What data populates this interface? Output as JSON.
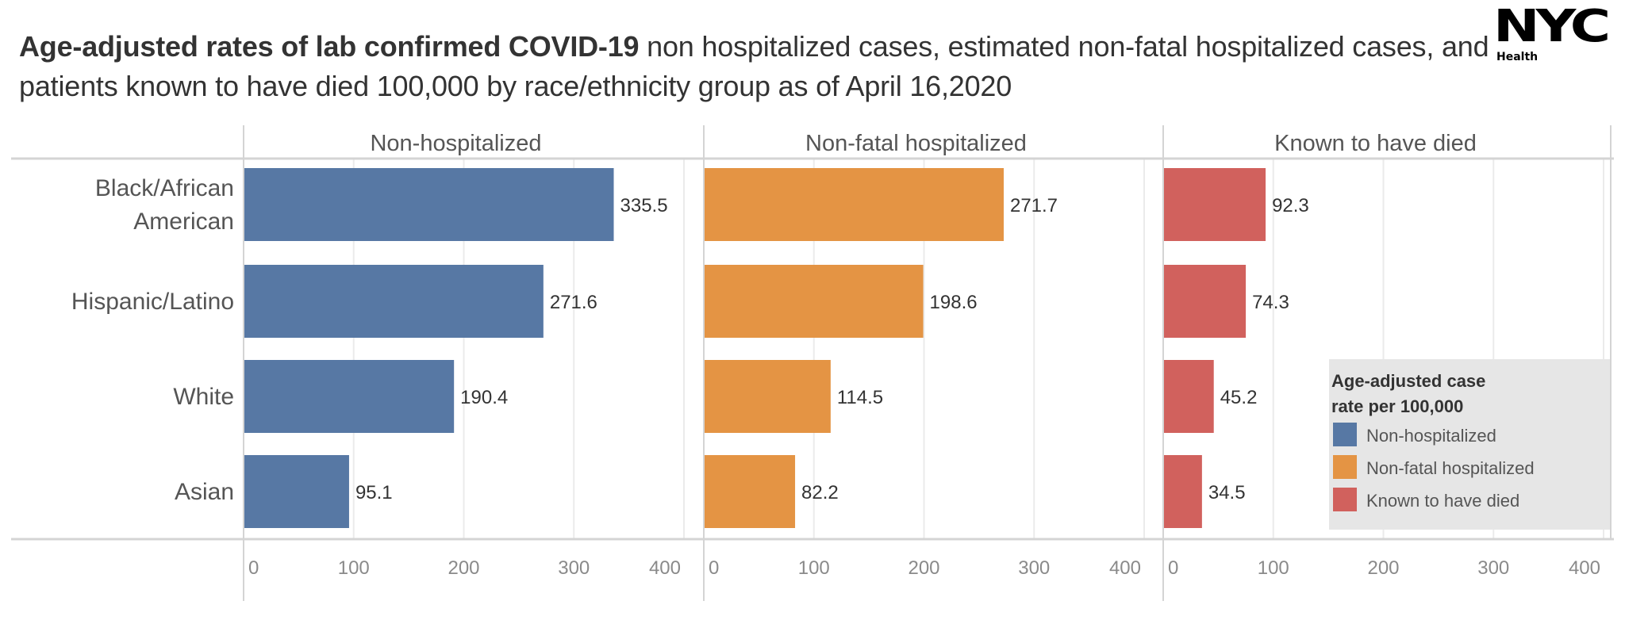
{
  "header": {
    "title_bold": "Age-adjusted rates of lab confirmed COVID-19",
    "title_rest": " non hospitalized cases, estimated non-fatal hospitalized cases, and patients known to have died 100,000 by race/ethnicity group as of April 16,2020",
    "logo_main": "NYC",
    "logo_sub": "Health"
  },
  "chart_data": {
    "type": "bar",
    "orientation": "horizontal",
    "title": "Age-adjusted rates of lab confirmed COVID-19 non hospitalized cases, estimated non-fatal hospitalized cases, and patients known to have died 100,000 by race/ethnicity group as of April 16,2020",
    "categories": [
      "Black/African American",
      "Hispanic/Latino",
      "White",
      "Asian"
    ],
    "category_lines": [
      [
        "Black/African",
        "American"
      ],
      [
        "Hispanic/Latino"
      ],
      [
        "White"
      ],
      [
        "Asian"
      ]
    ],
    "series": [
      {
        "name": "Non-hospitalized",
        "color": "#5778a4",
        "values": [
          335.5,
          271.6,
          190.4,
          95.1
        ],
        "labels": [
          "335.5",
          "271.6",
          "190.4",
          "95.1"
        ]
      },
      {
        "name": "Non-fatal hospitalized",
        "color": "#e49444",
        "values": [
          271.7,
          198.6,
          114.5,
          82.2
        ],
        "labels": [
          "271.7",
          "198.6",
          "114.5",
          "82.2"
        ]
      },
      {
        "name": "Known to have died",
        "color": "#d1615d",
        "values": [
          92.3,
          74.3,
          45.2,
          34.5
        ],
        "labels": [
          "92.3",
          "74.3",
          "45.2",
          "34.5"
        ]
      }
    ],
    "xlim": [
      0,
      400
    ],
    "xticks": [
      0,
      100,
      200,
      300,
      400
    ],
    "xtick_labels": [
      "0",
      "100",
      "200",
      "300",
      "400"
    ],
    "xlabel": "",
    "ylabel": "",
    "grid": true,
    "legend": {
      "title_lines": [
        "Age-adjusted case",
        "rate per 100,000"
      ],
      "placement": "bottom-right",
      "entries": [
        "Non-hospitalized",
        "Non-fatal hospitalized",
        "Known to have died"
      ]
    }
  }
}
